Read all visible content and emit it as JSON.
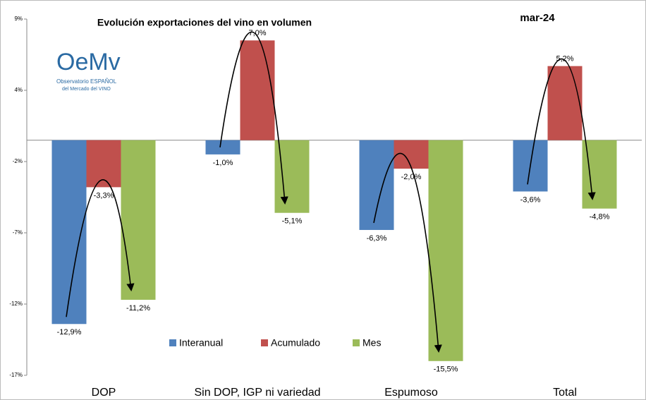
{
  "chart_data": {
    "type": "bar",
    "title": "Evolución exportaciones del vino en volumen",
    "period": "mar-24",
    "logo": {
      "text": "OeMv",
      "line1": "Observatorio ESPAÑOL",
      "line2": "del Mercado del VINO"
    },
    "categories": [
      "DOP",
      "Sin DOP, IGP ni variedad",
      "Espumoso",
      "Total"
    ],
    "series": [
      {
        "name": "Interanual",
        "color": "#4f81bd",
        "values": [
          -12.9,
          -1.0,
          -6.3,
          -3.6
        ],
        "value_labels": [
          "-12,9%",
          "-1,0%",
          "-6,3%",
          "-3,6%"
        ]
      },
      {
        "name": "Acumulado",
        "color": "#c0504d",
        "values": [
          -3.3,
          7.0,
          -2.0,
          5.2
        ],
        "value_labels": [
          "-3,3%",
          "7,0%",
          "-2,0%",
          "5,2%"
        ]
      },
      {
        "name": "Mes",
        "color": "#9bbb59",
        "values": [
          -11.2,
          -5.1,
          -15.5,
          -4.8
        ],
        "value_labels": [
          "-11,2%",
          "-5,1%",
          "-15,5%",
          "-4,8%"
        ]
      }
    ],
    "ylim": [
      -16.5,
      8.5
    ],
    "yticks": [
      {
        "value": 8.5,
        "label": "9%"
      },
      {
        "value": 3.5,
        "label": "4%"
      },
      {
        "value": -1.5,
        "label": "-2%"
      },
      {
        "value": -6.5,
        "label": "-7%"
      },
      {
        "value": -11.5,
        "label": "-12%"
      },
      {
        "value": -16.5,
        "label": "-17%"
      }
    ],
    "legend": "bottom"
  }
}
